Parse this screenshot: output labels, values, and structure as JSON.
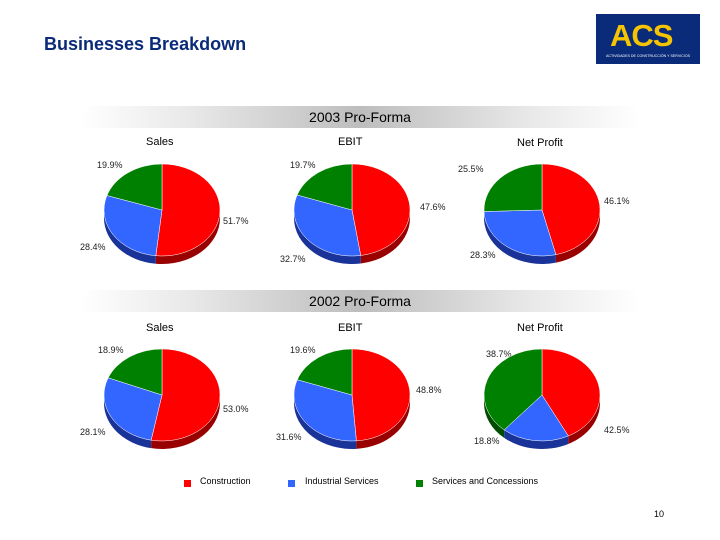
{
  "page": {
    "title": "Businesses Breakdown",
    "page_number": "10"
  },
  "logo": {
    "text": "ACS",
    "subtitle": "ACTIVIDADES DE CONSTRUCCIÓN Y SERVICIOS"
  },
  "legend": [
    {
      "label": "Construction",
      "color": "#ff0000"
    },
    {
      "label": "Industrial Services",
      "color": "#3366ff"
    },
    {
      "label": "Services and Concessions",
      "color": "#008000"
    }
  ],
  "sections": [
    {
      "heading": "2003 Pro-Forma"
    },
    {
      "heading": "2002 Pro-Forma"
    }
  ],
  "chart_data": [
    {
      "type": "pie",
      "title": "Sales",
      "period": "2003 Pro-Forma",
      "labels": [
        "Construction",
        "Industrial Services",
        "Services and Concessions"
      ],
      "values": [
        51.7,
        28.4,
        19.9
      ],
      "value_labels": [
        "51.7%",
        "28.4%",
        "19.9%"
      ]
    },
    {
      "type": "pie",
      "title": "EBIT",
      "period": "2003 Pro-Forma",
      "labels": [
        "Construction",
        "Industrial Services",
        "Services and Concessions"
      ],
      "values": [
        47.6,
        32.7,
        19.7
      ],
      "value_labels": [
        "47.6%",
        "32.7%",
        "19.7%"
      ]
    },
    {
      "type": "pie",
      "title": "Net Profit",
      "period": "2003 Pro-Forma",
      "labels": [
        "Construction",
        "Industrial Services",
        "Services and Concessions"
      ],
      "values": [
        46.1,
        28.3,
        25.5
      ],
      "value_labels": [
        "46.1%",
        "28.3%",
        "25.5%"
      ]
    },
    {
      "type": "pie",
      "title": "Sales",
      "period": "2002 Pro-Forma",
      "labels": [
        "Construction",
        "Industrial Services",
        "Services and Concessions"
      ],
      "values": [
        53.0,
        28.1,
        18.9
      ],
      "value_labels": [
        "53.0%",
        "28.1%",
        "18.9%"
      ]
    },
    {
      "type": "pie",
      "title": "EBIT",
      "period": "2002 Pro-Forma",
      "labels": [
        "Construction",
        "Industrial Services",
        "Services and Concessions"
      ],
      "values": [
        48.8,
        31.6,
        19.6
      ],
      "value_labels": [
        "48.8%",
        "31.6%",
        "19.6%"
      ]
    },
    {
      "type": "pie",
      "title": "Net Profit",
      "period": "2002 Pro-Forma",
      "labels": [
        "Construction",
        "Industrial Services",
        "Services and Concessions"
      ],
      "values": [
        42.5,
        18.8,
        38.7
      ],
      "value_labels": [
        "42.5%",
        "18.8%",
        "38.7%"
      ]
    }
  ]
}
